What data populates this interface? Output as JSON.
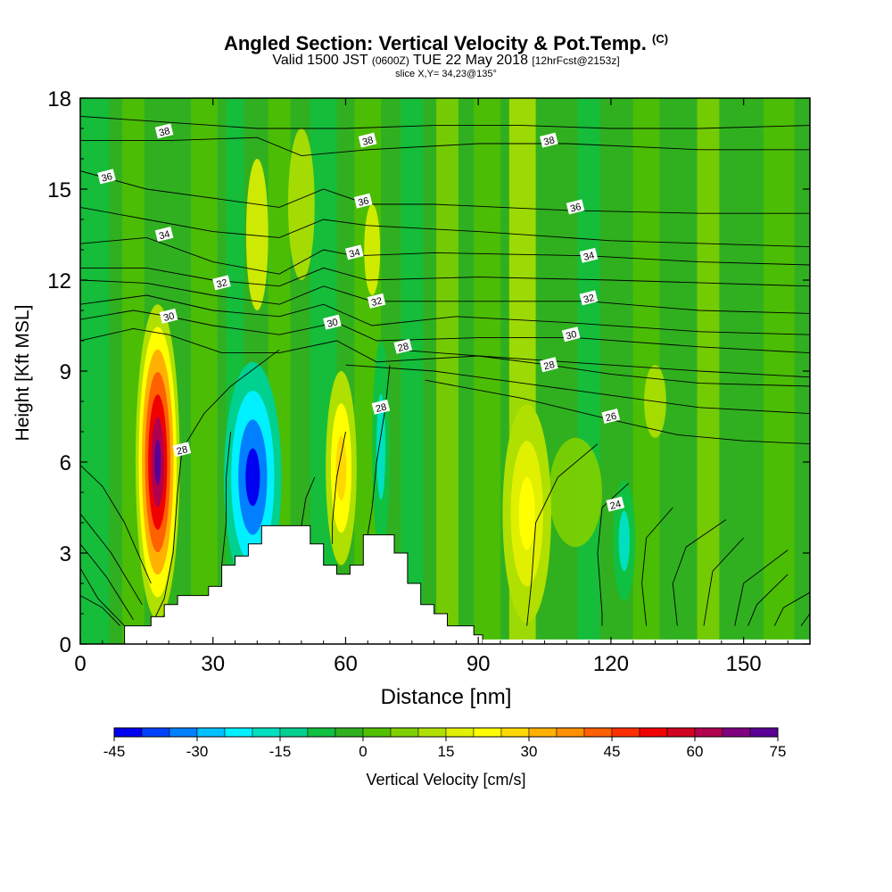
{
  "header": {
    "title_main": "Angled Section: Vertical Velocity & Pot.Temp.",
    "title_small": "(C)",
    "subtitle_a": "Valid 1500 JST",
    "subtitle_b": "(0600Z)",
    "subtitle_c": "TUE 22 May 2018",
    "subtitle_d": "[12hrFcst@2153z]",
    "slice": "slice X,Y= 34,23@135°"
  },
  "chart_data": {
    "type": "heatmap",
    "xlabel": "Distance [nm]",
    "ylabel": "Height [Kft MSL]",
    "xlim": [
      0,
      165
    ],
    "ylim": [
      0,
      18
    ],
    "x_ticks": [
      0,
      30,
      60,
      90,
      120,
      150
    ],
    "y_ticks": [
      0,
      3,
      6,
      9,
      12,
      15,
      18
    ],
    "colorbar": {
      "label": "Vertical Velocity [cm/s]",
      "ticks": [
        -45,
        -30,
        -15,
        0,
        15,
        30,
        45,
        60,
        75
      ],
      "levels": [
        -45,
        -40,
        -35,
        -30,
        -25,
        -20,
        -15,
        -10,
        -5,
        0,
        5,
        10,
        15,
        20,
        25,
        30,
        35,
        40,
        45,
        50,
        55,
        60,
        65,
        70,
        75
      ],
      "colors": [
        "#0000f0",
        "#0040ff",
        "#0080ff",
        "#00c0ff",
        "#00f0ff",
        "#00e0c0",
        "#00d090",
        "#10c040",
        "#30b020",
        "#50c000",
        "#80d000",
        "#b0e000",
        "#e0f000",
        "#ffff00",
        "#ffd800",
        "#ffb000",
        "#ff9000",
        "#ff6000",
        "#ff3000",
        "#f00000",
        "#d00020",
        "#b00050",
        "#800080",
        "#5a0096"
      ]
    },
    "isotherm_labels": [
      {
        "value": "38",
        "x": 19,
        "y": 16.9
      },
      {
        "value": "38",
        "x": 65,
        "y": 16.6
      },
      {
        "value": "38",
        "x": 106,
        "y": 16.6
      },
      {
        "value": "36",
        "x": 6,
        "y": 15.4
      },
      {
        "value": "36",
        "x": 64,
        "y": 14.6
      },
      {
        "value": "36",
        "x": 112,
        "y": 14.4
      },
      {
        "value": "34",
        "x": 19,
        "y": 13.5
      },
      {
        "value": "34",
        "x": 62,
        "y": 12.9
      },
      {
        "value": "34",
        "x": 115,
        "y": 12.8
      },
      {
        "value": "32",
        "x": 32,
        "y": 11.9
      },
      {
        "value": "32",
        "x": 67,
        "y": 11.3
      },
      {
        "value": "32",
        "x": 115,
        "y": 11.4
      },
      {
        "value": "30",
        "x": 20,
        "y": 10.8
      },
      {
        "value": "30",
        "x": 57,
        "y": 10.6
      },
      {
        "value": "30",
        "x": 111,
        "y": 10.2
      },
      {
        "value": "28",
        "x": 73,
        "y": 9.8
      },
      {
        "value": "28",
        "x": 106,
        "y": 9.2
      },
      {
        "value": "28",
        "x": 23,
        "y": 6.4
      },
      {
        "value": "28",
        "x": 68,
        "y": 7.8
      },
      {
        "value": "26",
        "x": 120,
        "y": 7.5
      },
      {
        "value": "24",
        "x": 121,
        "y": 4.6
      }
    ],
    "terrain": [
      [
        0,
        0
      ],
      [
        10,
        0
      ],
      [
        10,
        0.6
      ],
      [
        16,
        0.6
      ],
      [
        16,
        0.9
      ],
      [
        19,
        0.9
      ],
      [
        19,
        1.3
      ],
      [
        22,
        1.3
      ],
      [
        22,
        1.6
      ],
      [
        29,
        1.6
      ],
      [
        29,
        1.9
      ],
      [
        32,
        1.9
      ],
      [
        32,
        2.6
      ],
      [
        35,
        2.6
      ],
      [
        35,
        2.9
      ],
      [
        38,
        2.9
      ],
      [
        38,
        3.3
      ],
      [
        41,
        3.3
      ],
      [
        41,
        3.9
      ],
      [
        52,
        3.9
      ],
      [
        52,
        3.3
      ],
      [
        55,
        3.3
      ],
      [
        55,
        2.6
      ],
      [
        58,
        2.6
      ],
      [
        58,
        2.3
      ],
      [
        61,
        2.3
      ],
      [
        61,
        2.6
      ],
      [
        64,
        2.6
      ],
      [
        64,
        3.6
      ],
      [
        71,
        3.6
      ],
      [
        71,
        3.0
      ],
      [
        74,
        3.0
      ],
      [
        74,
        2.0
      ],
      [
        77,
        2.0
      ],
      [
        77,
        1.3
      ],
      [
        80,
        1.3
      ],
      [
        80,
        1.0
      ],
      [
        83,
        1.0
      ],
      [
        83,
        0.6
      ],
      [
        89,
        0.6
      ],
      [
        89,
        0.3
      ],
      [
        91,
        0.3
      ],
      [
        91,
        0
      ]
    ],
    "isotherms": [
      {
        "v": 38,
        "pts": [
          [
            0,
            17.4
          ],
          [
            20,
            17.2
          ],
          [
            40,
            17.0
          ],
          [
            60,
            17.0
          ],
          [
            80,
            17.1
          ],
          [
            100,
            17.1
          ],
          [
            120,
            17.0
          ],
          [
            140,
            17.0
          ],
          [
            165,
            17.1
          ]
        ]
      },
      {
        "v": 38,
        "pts": [
          [
            0,
            16.6
          ],
          [
            20,
            16.6
          ],
          [
            40,
            16.7
          ],
          [
            50,
            16.1
          ],
          [
            65,
            16.3
          ],
          [
            90,
            16.5
          ],
          [
            110,
            16.5
          ],
          [
            140,
            16.3
          ],
          [
            165,
            16.3
          ]
        ]
      },
      {
        "v": 36,
        "pts": [
          [
            0,
            15.6
          ],
          [
            15,
            15.0
          ],
          [
            30,
            14.7
          ],
          [
            45,
            14.4
          ],
          [
            55,
            15.0
          ],
          [
            65,
            14.5
          ],
          [
            80,
            14.5
          ],
          [
            110,
            14.3
          ],
          [
            140,
            14.2
          ],
          [
            165,
            14.2
          ]
        ]
      },
      {
        "v": 36,
        "pts": [
          [
            0,
            14.4
          ],
          [
            15,
            14.0
          ],
          [
            30,
            13.6
          ],
          [
            45,
            13.4
          ],
          [
            55,
            14.0
          ],
          [
            65,
            13.8
          ],
          [
            90,
            13.6
          ],
          [
            120,
            13.3
          ],
          [
            165,
            13.1
          ]
        ]
      },
      {
        "v": 34,
        "pts": [
          [
            0,
            13.2
          ],
          [
            15,
            13.4
          ],
          [
            30,
            12.6
          ],
          [
            45,
            12.2
          ],
          [
            55,
            13.0
          ],
          [
            62,
            12.8
          ],
          [
            80,
            12.9
          ],
          [
            115,
            12.8
          ],
          [
            140,
            12.6
          ],
          [
            165,
            12.5
          ]
        ]
      },
      {
        "v": 34,
        "pts": [
          [
            0,
            12.4
          ],
          [
            15,
            12.4
          ],
          [
            30,
            12.0
          ],
          [
            45,
            11.8
          ],
          [
            55,
            12.4
          ],
          [
            65,
            12.0
          ],
          [
            90,
            12.1
          ],
          [
            120,
            12.0
          ],
          [
            165,
            11.8
          ]
        ]
      },
      {
        "v": 32,
        "pts": [
          [
            0,
            12.0
          ],
          [
            15,
            11.9
          ],
          [
            30,
            11.5
          ],
          [
            45,
            11.2
          ],
          [
            55,
            11.8
          ],
          [
            66,
            11.3
          ],
          [
            90,
            11.3
          ],
          [
            115,
            11.3
          ],
          [
            140,
            11.0
          ],
          [
            165,
            10.9
          ]
        ]
      },
      {
        "v": 32,
        "pts": [
          [
            0,
            11.2
          ],
          [
            15,
            11.5
          ],
          [
            30,
            11.0
          ],
          [
            45,
            10.8
          ],
          [
            55,
            11.2
          ],
          [
            66,
            10.5
          ],
          [
            85,
            10.8
          ],
          [
            110,
            10.6
          ],
          [
            140,
            10.3
          ],
          [
            165,
            10.2
          ]
        ]
      },
      {
        "v": 30,
        "pts": [
          [
            0,
            10.7
          ],
          [
            12,
            11.0
          ],
          [
            20,
            10.8
          ],
          [
            30,
            10.5
          ],
          [
            45,
            10.2
          ],
          [
            58,
            10.6
          ],
          [
            67,
            10.0
          ],
          [
            90,
            10.1
          ],
          [
            112,
            10.1
          ],
          [
            140,
            9.8
          ],
          [
            165,
            9.6
          ]
        ]
      },
      {
        "v": 30,
        "pts": [
          [
            0,
            10.0
          ],
          [
            12,
            10.4
          ],
          [
            20,
            10.2
          ],
          [
            32,
            9.6
          ],
          [
            45,
            9.6
          ],
          [
            58,
            10.0
          ],
          [
            67,
            9.3
          ],
          [
            90,
            9.5
          ],
          [
            110,
            9.3
          ],
          [
            140,
            9.0
          ],
          [
            165,
            8.8
          ]
        ]
      },
      {
        "v": 28,
        "pts": [
          [
            72,
            9.7
          ],
          [
            90,
            9.5
          ],
          [
            106,
            9.2
          ],
          [
            120,
            8.9
          ],
          [
            140,
            8.6
          ],
          [
            165,
            8.5
          ]
        ]
      },
      {
        "v": 28,
        "pts": [
          [
            60,
            9.2
          ],
          [
            80,
            9.0
          ],
          [
            100,
            8.6
          ],
          [
            120,
            8.2
          ],
          [
            140,
            7.8
          ],
          [
            165,
            7.6
          ]
        ]
      },
      {
        "v": 26,
        "pts": [
          [
            78,
            8.7
          ],
          [
            100,
            8.1
          ],
          [
            120,
            7.4
          ],
          [
            135,
            6.9
          ],
          [
            150,
            6.7
          ],
          [
            165,
            6.6
          ]
        ]
      },
      {
        "v": 28,
        "pts": [
          [
            45,
            9.7
          ],
          [
            34,
            8.5
          ],
          [
            28,
            7.6
          ],
          [
            23,
            6.4
          ],
          [
            22,
            5.0
          ],
          [
            21,
            3.0
          ],
          [
            19,
            1.5
          ],
          [
            17,
            0.9
          ]
        ]
      },
      {
        "v": 28,
        "pts": [
          [
            70,
            9.2
          ],
          [
            69,
            7.8
          ],
          [
            67,
            6.0
          ],
          [
            66,
            4.5
          ],
          [
            65,
            3.6
          ]
        ]
      },
      {
        "v": 26,
        "pts": [
          [
            60,
            7.0
          ],
          [
            58,
            5.5
          ],
          [
            57,
            4.0
          ],
          [
            57,
            3.3
          ]
        ]
      },
      {
        "v": 26,
        "pts": [
          [
            53,
            5.5
          ],
          [
            51,
            4.8
          ],
          [
            50,
            3.9
          ]
        ]
      },
      {
        "v": 26,
        "pts": [
          [
            34,
            7.0
          ],
          [
            33,
            5.5
          ],
          [
            33,
            4.0
          ],
          [
            32,
            2.6
          ]
        ]
      },
      {
        "v": 24,
        "pts": [
          [
            10,
            0.6
          ],
          [
            4,
            1.5
          ],
          [
            0,
            2.5
          ]
        ]
      },
      {
        "v": 24,
        "pts": [
          [
            12,
            0.8
          ],
          [
            6,
            2.2
          ],
          [
            0,
            3.3
          ]
        ]
      },
      {
        "v": 26,
        "pts": [
          [
            14,
            1.3
          ],
          [
            7,
            3.0
          ],
          [
            0,
            4.3
          ]
        ]
      },
      {
        "v": 28,
        "pts": [
          [
            16,
            2.0
          ],
          [
            10,
            4.0
          ],
          [
            5,
            5.2
          ],
          [
            0,
            5.9
          ]
        ]
      },
      {
        "v": 26,
        "pts": [
          [
            117,
            6.6
          ],
          [
            108,
            5.5
          ],
          [
            103,
            4.0
          ],
          [
            102,
            2.0
          ],
          [
            101,
            0.6
          ]
        ]
      },
      {
        "v": 24,
        "pts": [
          [
            124,
            5.3
          ],
          [
            118,
            4.5
          ],
          [
            117,
            3.0
          ],
          [
            118,
            1.0
          ],
          [
            118,
            0.6
          ]
        ]
      },
      {
        "v": 24,
        "pts": [
          [
            134,
            4.5
          ],
          [
            128,
            3.5
          ],
          [
            127,
            2.0
          ],
          [
            128,
            0.6
          ]
        ]
      },
      {
        "v": 24,
        "pts": [
          [
            146,
            4.1
          ],
          [
            137,
            3.2
          ],
          [
            134,
            2.0
          ],
          [
            135,
            0.6
          ]
        ]
      },
      {
        "v": 24,
        "pts": [
          [
            150,
            3.5
          ],
          [
            143,
            2.4
          ],
          [
            141,
            0.6
          ]
        ]
      },
      {
        "v": 24,
        "pts": [
          [
            160,
            3.1
          ],
          [
            150,
            2.0
          ],
          [
            148,
            0.6
          ]
        ]
      },
      {
        "v": 24,
        "pts": [
          [
            160,
            2.3
          ],
          [
            153,
            1.3
          ],
          [
            151,
            0.6
          ]
        ]
      },
      {
        "v": 24,
        "pts": [
          [
            165,
            1.7
          ],
          [
            159,
            1.2
          ],
          [
            157,
            0.6
          ]
        ]
      },
      {
        "v": 24,
        "pts": [
          [
            165,
            1.0
          ],
          [
            163,
            0.6
          ]
        ]
      },
      {
        "v": 22,
        "pts": [
          [
            0,
            1.6
          ],
          [
            5,
            1.2
          ],
          [
            9,
            0.6
          ]
        ]
      }
    ],
    "features": [
      {
        "desc": "updraft core",
        "cx": 17.5,
        "cy": 6.0,
        "rx": 5.0,
        "ry": 5.2,
        "levels": [
          10,
          20,
          30,
          40,
          50,
          60,
          70
        ]
      },
      {
        "desc": "downdraft core",
        "cx": 39,
        "cy": 5.5,
        "rx": 6.5,
        "ry": 3.8,
        "levels": [
          -15,
          -25,
          -35,
          -45
        ]
      },
      {
        "desc": "downdraft",
        "cx": 68,
        "cy": 6.5,
        "rx": 2.0,
        "ry": 3.5,
        "levels": [
          -10,
          -20
        ]
      },
      {
        "desc": "updraft",
        "cx": 59,
        "cy": 5.8,
        "rx": 3.5,
        "ry": 3.2,
        "levels": [
          10,
          20,
          25
        ]
      },
      {
        "desc": "updraft",
        "cx": 101,
        "cy": 4.3,
        "rx": 5.5,
        "ry": 3.6,
        "levels": [
          10,
          15,
          20
        ]
      },
      {
        "desc": "downdraft",
        "cx": 123,
        "cy": 3.4,
        "rx": 2.5,
        "ry": 2.0,
        "levels": [
          -10,
          -20
        ]
      }
    ]
  }
}
